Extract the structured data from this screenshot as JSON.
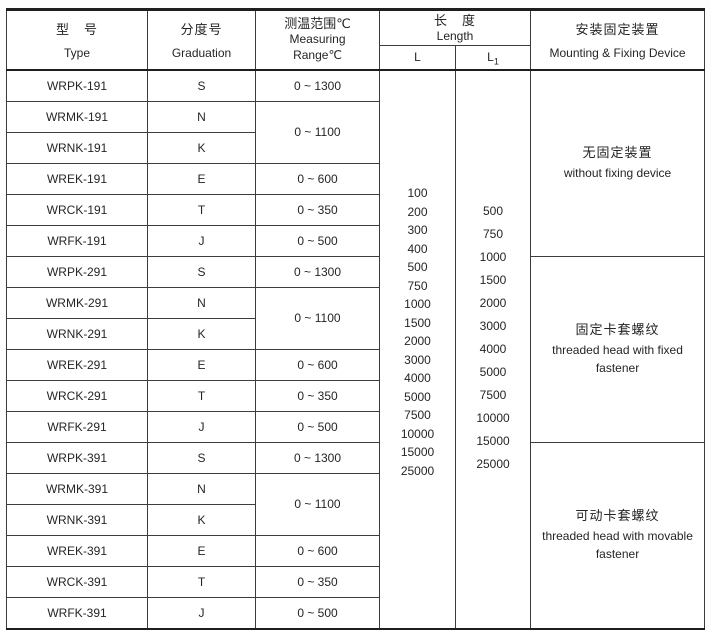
{
  "header": {
    "type": {
      "zh": "型　号",
      "en": "Type"
    },
    "graduation": {
      "zh": "分度号",
      "en": "Graduation"
    },
    "range": {
      "zh": "测温范围℃",
      "en1": "Measuring",
      "en2": "Range℃"
    },
    "length": {
      "zh": "长　度",
      "en": "Length",
      "l": "L",
      "l1_base": "L",
      "l1_sub": "1"
    },
    "mounting": {
      "zh": "安装固定装置",
      "en": "Mounting & Fixing Device"
    }
  },
  "rows": [
    {
      "type": "WRPK-191",
      "grad": "S",
      "range": "0 ~ 1300"
    },
    {
      "type": "WRMK-191",
      "grad": "N",
      "range": "0 ~ 1100"
    },
    {
      "type": "WRNK-191",
      "grad": "K"
    },
    {
      "type": "WREK-191",
      "grad": "E",
      "range": "0 ~ 600"
    },
    {
      "type": "WRCK-191",
      "grad": "T",
      "range": "0 ~ 350"
    },
    {
      "type": "WRFK-191",
      "grad": "J",
      "range": "0 ~ 500"
    },
    {
      "type": "WRPK-291",
      "grad": "S",
      "range": "0 ~ 1300"
    },
    {
      "type": "WRMK-291",
      "grad": "N",
      "range": "0 ~ 1100"
    },
    {
      "type": "WRNK-291",
      "grad": "K"
    },
    {
      "type": "WREK-291",
      "grad": "E",
      "range": "0 ~ 600"
    },
    {
      "type": "WRCK-291",
      "grad": "T",
      "range": "0 ~ 350"
    },
    {
      "type": "WRFK-291",
      "grad": "J",
      "range": "0 ~ 500"
    },
    {
      "type": "WRPK-391",
      "grad": "S",
      "range": "0 ~ 1300"
    },
    {
      "type": "WRMK-391",
      "grad": "N",
      "range": "0 ~ 1100"
    },
    {
      "type": "WRNK-391",
      "grad": "K"
    },
    {
      "type": "WREK-391",
      "grad": "E",
      "range": "0 ~ 600"
    },
    {
      "type": "WRCK-391",
      "grad": "T",
      "range": "0 ~ 350"
    },
    {
      "type": "WRFK-391",
      "grad": "J",
      "range": "0 ~ 500"
    }
  ],
  "length_options": {
    "l": [
      "100",
      "200",
      "300",
      "400",
      "500",
      "750",
      "1000",
      "1500",
      "2000",
      "3000",
      "4000",
      "5000",
      "7500",
      "10000",
      "15000",
      "25000"
    ],
    "l1": [
      "500",
      "750",
      "1000",
      "1500",
      "2000",
      "3000",
      "4000",
      "5000",
      "7500",
      "10000",
      "15000",
      "25000"
    ]
  },
  "mounting_blocks": [
    {
      "zh": "无固定装置",
      "en": "without fixing device"
    },
    {
      "zh": "固定卡套螺纹",
      "en": "threaded head with fixed fastener"
    },
    {
      "zh": "可动卡套螺纹",
      "en": "threaded head with movable fastener"
    }
  ]
}
